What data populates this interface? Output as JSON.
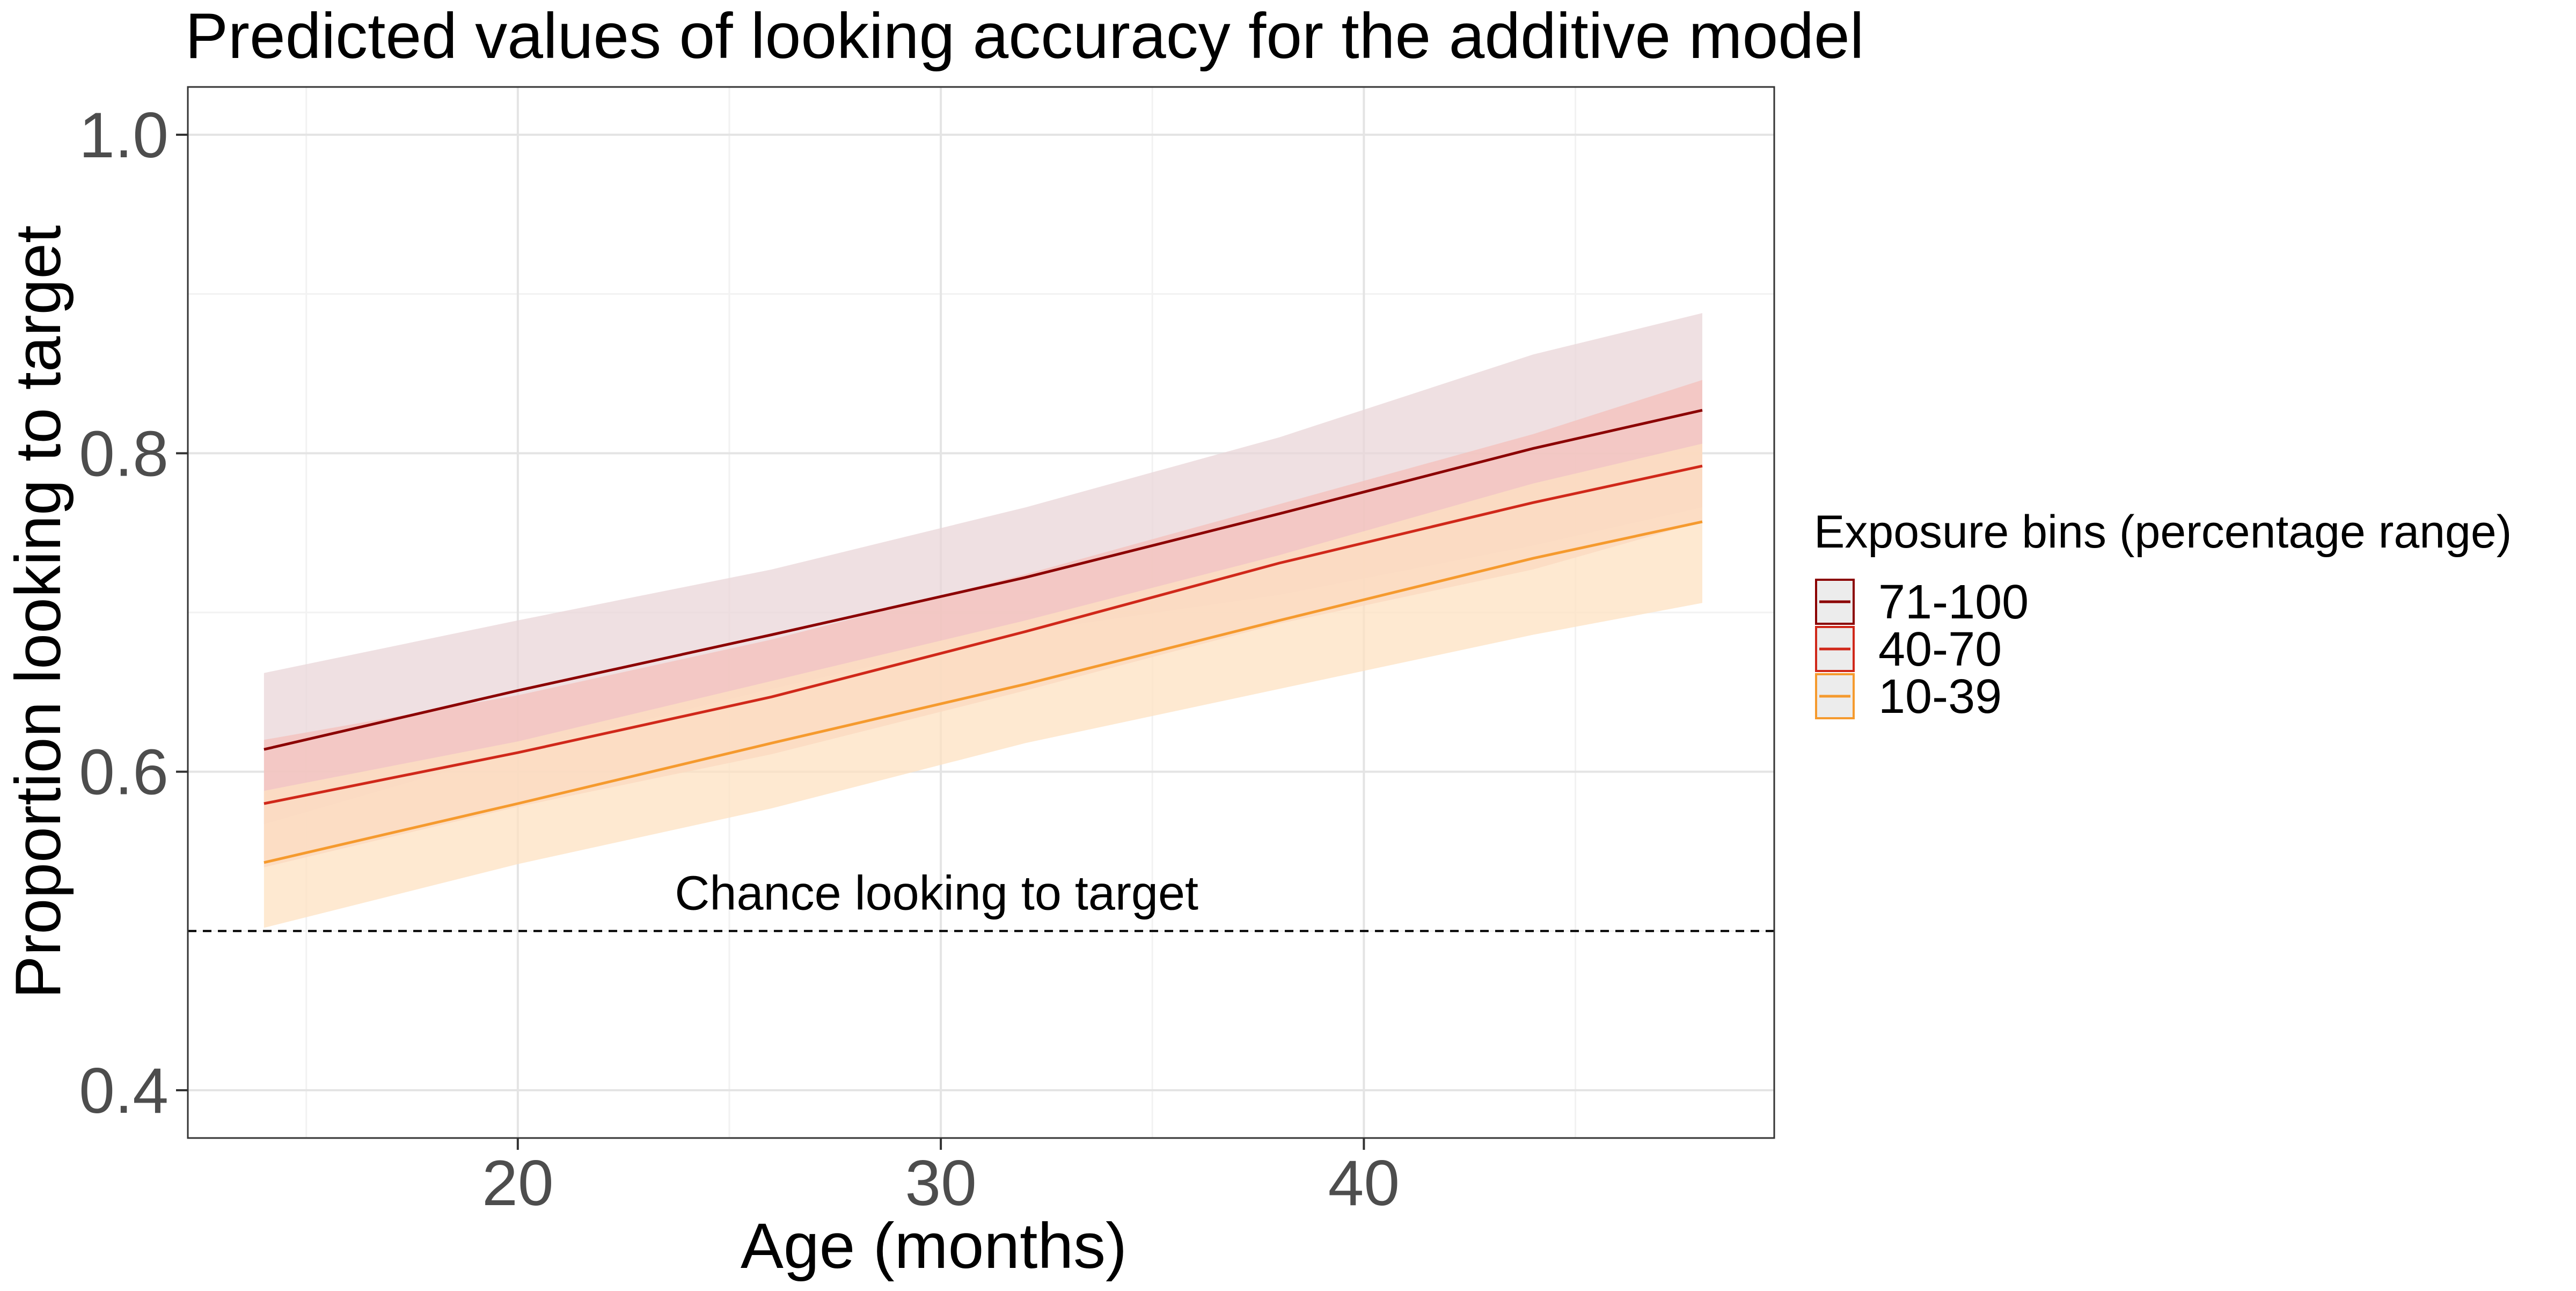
{
  "chart_data": {
    "type": "line",
    "title": "Predicted values of looking accuracy for the additive model",
    "xlabel": "Age (months)",
    "ylabel": "Proportion looking to target",
    "xlim": [
      12.2,
      49.7
    ],
    "ylim": [
      0.37,
      1.03
    ],
    "x_ticks": [
      20,
      30,
      40
    ],
    "x_tick_labels": [
      "20",
      "30",
      "40"
    ],
    "x_minor_ticks": [
      15,
      25,
      35,
      45
    ],
    "y_ticks": [
      0.4,
      0.6,
      0.8,
      1.0
    ],
    "y_tick_labels": [
      "0.4",
      "0.6",
      "0.8",
      "1.0"
    ],
    "y_minor_ticks": [
      0.5,
      0.7,
      0.9
    ],
    "grid": true,
    "legend": {
      "title": "Exposure bins (percentage range)",
      "placement": "right"
    },
    "reference_line": {
      "y": 0.5,
      "style": "dashed",
      "label": "Chance looking to target"
    },
    "series": [
      {
        "name": "71-100",
        "color": "#8b0000",
        "band_color": "#e9d6d8",
        "x": [
          14,
          20,
          26,
          32,
          38,
          44,
          48
        ],
        "y": [
          0.614,
          0.651,
          0.686,
          0.722,
          0.762,
          0.803,
          0.827
        ],
        "lower": [
          0.567,
          0.613,
          0.652,
          0.688,
          0.711,
          0.742,
          0.766
        ],
        "upper": [
          0.662,
          0.695,
          0.727,
          0.766,
          0.81,
          0.862,
          0.888
        ]
      },
      {
        "name": "40-70",
        "color": "#d0281a",
        "band_color": "#f4c0bb",
        "x": [
          14,
          20,
          26,
          32,
          38,
          44,
          48
        ],
        "y": [
          0.58,
          0.612,
          0.647,
          0.688,
          0.731,
          0.769,
          0.792
        ],
        "lower": [
          0.54,
          0.578,
          0.611,
          0.651,
          0.693,
          0.727,
          0.757
        ],
        "upper": [
          0.62,
          0.648,
          0.683,
          0.724,
          0.768,
          0.812,
          0.846
        ]
      },
      {
        "name": "10-39",
        "color": "#f59a2e",
        "band_color": "#fde2c2",
        "x": [
          14,
          20,
          26,
          32,
          38,
          44,
          48
        ],
        "y": [
          0.543,
          0.58,
          0.618,
          0.655,
          0.695,
          0.734,
          0.757
        ],
        "lower": [
          0.502,
          0.542,
          0.577,
          0.618,
          0.652,
          0.686,
          0.706
        ],
        "upper": [
          0.588,
          0.619,
          0.657,
          0.695,
          0.736,
          0.781,
          0.806
        ]
      }
    ]
  }
}
